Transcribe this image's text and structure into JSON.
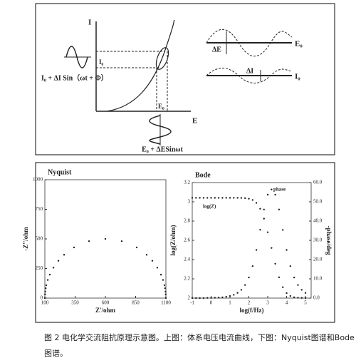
{
  "diagram": {
    "y_axis": "I",
    "x_axis": "E",
    "i0_mark": "I₀",
    "e0_mark": "E₀",
    "current_signal": "I₀ + ΔI Sin（ωt + Φ）",
    "voltage_signal": "E₀ + ΔESinωt",
    "delta_e": "ΔE",
    "e0_wave": "E₀",
    "delta_i": "ΔI",
    "i0_wave": "I₀"
  },
  "chart_data": [
    {
      "type": "scatter",
      "title": "Nyquist",
      "x_label": "Z'/ohm",
      "y_label": "-Z''/ohm",
      "xlim": [
        100,
        1100
      ],
      "ylim": [
        0,
        1000
      ],
      "xticks": [
        100,
        350,
        600,
        850,
        1100
      ],
      "yticks": [
        0,
        250,
        500,
        750,
        1000
      ],
      "series": [
        {
          "color": "#222222",
          "x": [
            100,
            101,
            103,
            107,
            112,
            124,
            141,
            171,
            212,
            259,
            341,
            465,
            600,
            735,
            859,
            941,
            988,
            1029,
            1059,
            1076,
            1088,
            1093,
            1097,
            1099,
            1100
          ],
          "values": [
            0,
            32,
            55,
            83,
            109,
            153,
            198,
            257,
            315,
            366,
            428,
            481,
            500,
            481,
            428,
            366,
            315,
            257,
            198,
            153,
            109,
            83,
            55,
            32,
            0
          ]
        }
      ]
    },
    {
      "type": "scatter",
      "title": "Bode",
      "x_label": "log(f/Hz)",
      "y_label": "log(Z/ohm)",
      "y2_label": "-phase/deg",
      "xlim": [
        -1,
        5.3
      ],
      "ylim": [
        2,
        3.2
      ],
      "y2lim": [
        0,
        60
      ],
      "xticks": [
        -1,
        0,
        1,
        2,
        3,
        4,
        5
      ],
      "yticks": [
        2,
        2.2,
        2.4,
        2.6,
        2.8,
        3,
        3.2
      ],
      "y2ticks": [
        {
          "value": 0,
          "label": "0.0"
        },
        {
          "value": 10,
          "label": "10.0"
        },
        {
          "value": 20,
          "label": "20.0"
        },
        {
          "value": 30,
          "label": "30.0"
        },
        {
          "value": 40,
          "label": "40.0"
        },
        {
          "value": 50,
          "label": "50.0"
        },
        {
          "value": 60,
          "label": "60.0"
        }
      ],
      "x": [
        -1,
        -0.8,
        -0.6,
        -0.4,
        -0.2,
        0,
        0.2,
        0.4,
        0.6,
        0.8,
        1,
        1.2,
        1.4,
        1.6,
        1.8,
        2,
        2.2,
        2.4,
        2.6,
        2.8,
        3,
        3.2,
        3.4,
        3.6,
        3.8,
        4,
        4.2,
        4.4,
        4.6,
        4.8,
        5
      ],
      "series": [
        {
          "name": "log(Z)",
          "color": "#222222",
          "values": [
            3.041,
            3.041,
            3.041,
            3.041,
            3.041,
            3.041,
            3.041,
            3.041,
            3.041,
            3.041,
            3.041,
            3.041,
            3.041,
            3.04,
            3.038,
            3.032,
            3.019,
            2.989,
            2.928,
            2.825,
            2.684,
            2.521,
            2.357,
            2.216,
            2.113,
            2.052,
            2.022,
            2.009,
            2.004,
            2.002,
            2.001
          ]
        },
        {
          "name": "phase",
          "color": "#222222",
          "axis": "y2",
          "values": [
            0,
            0,
            0,
            0,
            0.1,
            0.1,
            0.2,
            0.3,
            0.4,
            0.7,
            1.1,
            1.7,
            2.7,
            4.3,
            6.8,
            10.7,
            16.6,
            25,
            35.5,
            46,
            53.7,
            56.4,
            53.7,
            46,
            35.4,
            25,
            16.6,
            10.7,
            6.8,
            4.3,
            2.7
          ]
        }
      ]
    }
  ],
  "caption": [
    "图 2 电化学交流阻抗原理示意图。上图：体系电压电流曲线，下图：Nyquist图谱和Bode",
    "图谱。"
  ]
}
